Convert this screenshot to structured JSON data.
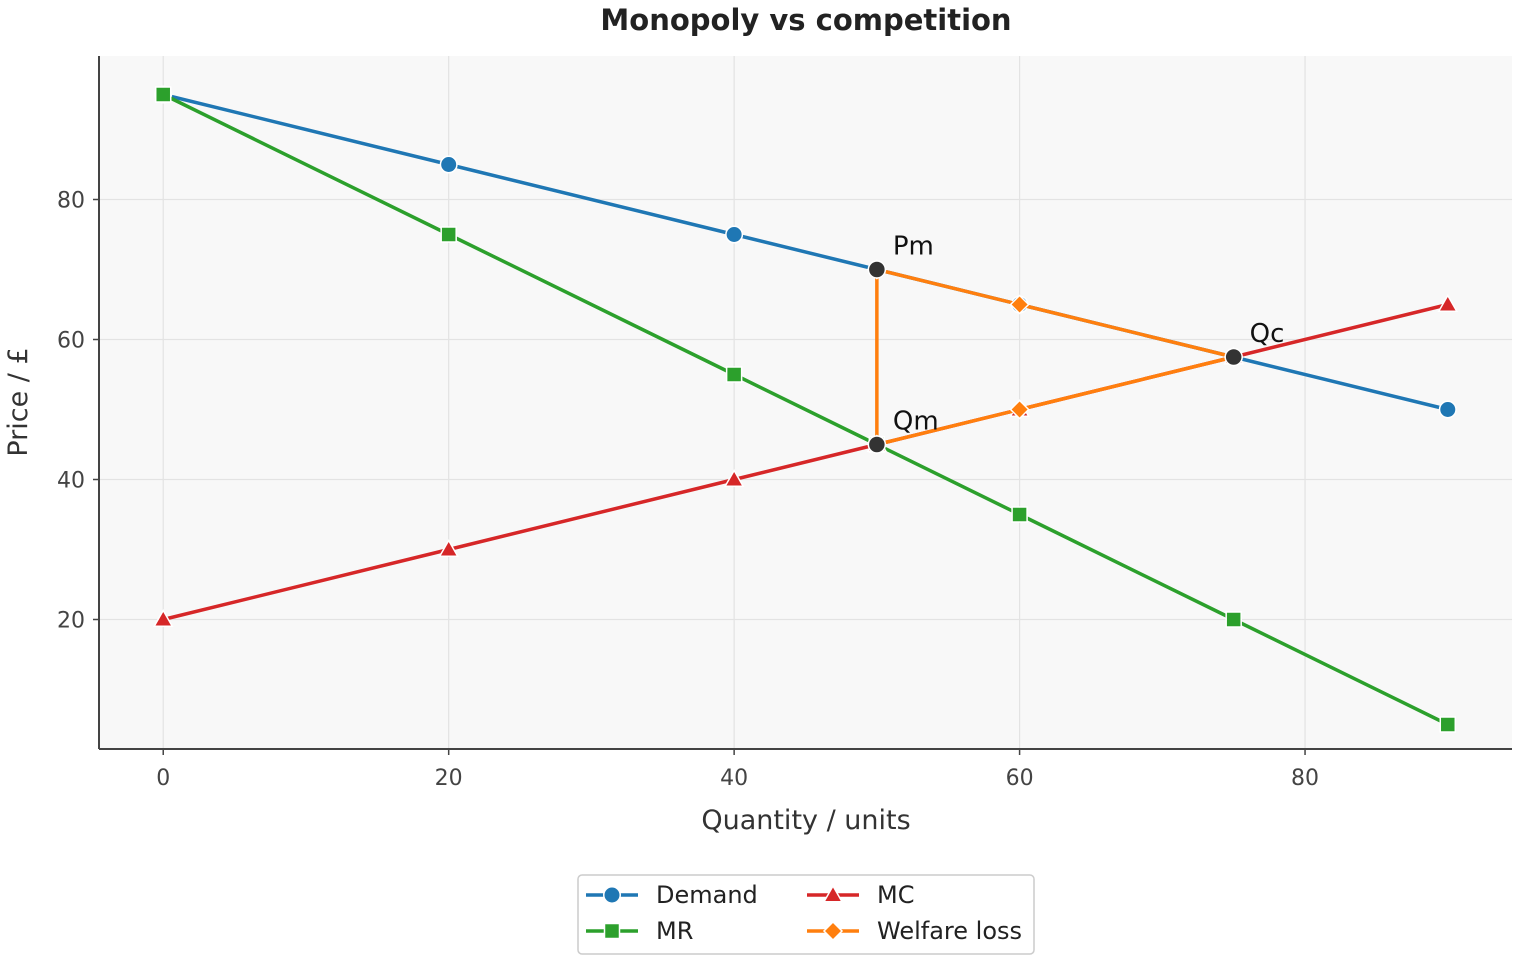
{
  "chart_data": {
    "type": "line",
    "title": "Monopoly vs competition",
    "xlabel": "Quantity / units",
    "ylabel": "Price / £",
    "xlim": [
      -4.5,
      94.5
    ],
    "ylim": [
      1.5,
      100.5
    ],
    "xticks": [
      0,
      20,
      40,
      60,
      80
    ],
    "yticks": [
      20,
      40,
      60,
      80
    ],
    "grid": true,
    "legend_position": "bottom-center",
    "series": [
      {
        "name": "Demand",
        "color": "#1f77b4",
        "marker": "circle",
        "points": [
          [
            0,
            95
          ],
          [
            20,
            85
          ],
          [
            40,
            75
          ],
          [
            50,
            70
          ],
          [
            60,
            65
          ],
          [
            75,
            57.5
          ],
          [
            90,
            50
          ]
        ]
      },
      {
        "name": "MR",
        "color": "#2ca02c",
        "marker": "square",
        "points": [
          [
            0,
            95
          ],
          [
            20,
            75
          ],
          [
            40,
            55
          ],
          [
            50,
            45
          ],
          [
            60,
            35
          ],
          [
            75,
            20
          ],
          [
            90,
            5
          ]
        ]
      },
      {
        "name": "MC",
        "color": "#d62728",
        "marker": "triangle",
        "points": [
          [
            0,
            20
          ],
          [
            20,
            30
          ],
          [
            40,
            40
          ],
          [
            50,
            45
          ],
          [
            60,
            50
          ],
          [
            75,
            57.5
          ],
          [
            90,
            65
          ]
        ]
      },
      {
        "name": "Welfare loss",
        "color": "#ff7f0e",
        "marker": "diamond",
        "points": [
          [
            50,
            70
          ],
          [
            60,
            65
          ],
          [
            75,
            57.5
          ],
          [
            60,
            50
          ],
          [
            50,
            45
          ],
          [
            50,
            70
          ]
        ]
      }
    ],
    "highlight_points": [
      {
        "x": 50,
        "y": 70,
        "label": "Pm"
      },
      {
        "x": 50,
        "y": 45,
        "label": "Qm"
      },
      {
        "x": 75,
        "y": 57.5,
        "label": "Qc"
      }
    ]
  }
}
